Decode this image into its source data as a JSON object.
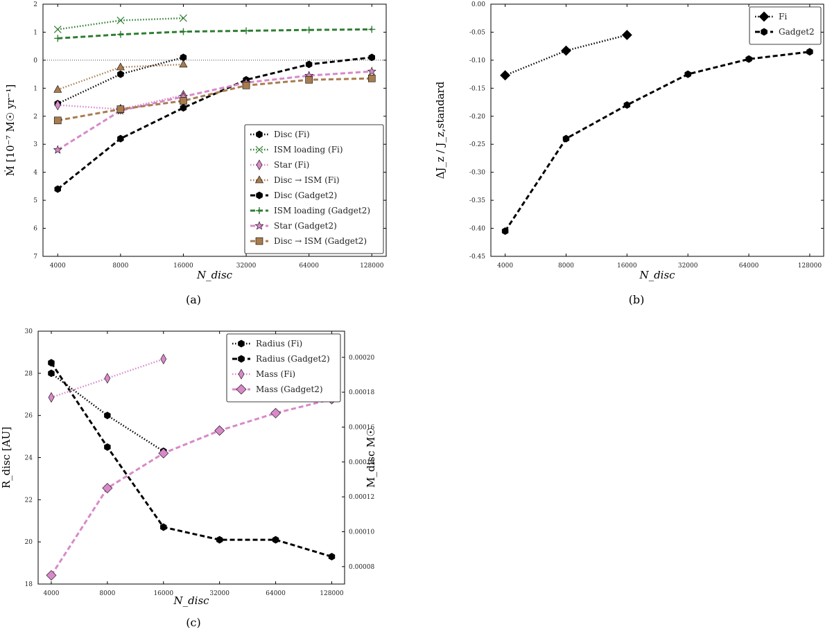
{
  "figure": {
    "panels": [
      "(a)",
      "(b)",
      "(c)"
    ]
  },
  "colors": {
    "black": "#000000",
    "green": "#2e7d32",
    "pink": "#d889c8",
    "brown": "#a87c4f"
  },
  "chart_data": [
    {
      "id": "a",
      "type": "line",
      "caption": "(a)",
      "xlabel": "N_disc",
      "ylabel": "Ṁ [10⁻⁷ M☉ yr⁻¹]",
      "x_scale": "log2",
      "xlim": [
        3400,
        150000
      ],
      "ylim": [
        -7,
        2
      ],
      "yticks": [
        2,
        1,
        0,
        -1,
        -2,
        -3,
        -4,
        -5,
        -6,
        -7
      ],
      "ytick_labels": [
        "2",
        "1",
        "0",
        "1",
        "2",
        "3",
        "4",
        "5",
        "6",
        "7"
      ],
      "xticks": [
        4000,
        8000,
        16000,
        32000,
        64000,
        128000
      ],
      "xtick_labels": [
        "4000",
        "8000",
        "16000",
        "32000",
        "64000",
        "128000"
      ],
      "hline": 0,
      "legend_position": "lower-right",
      "series": [
        {
          "name": "Disc (Fi)",
          "color": "#000000",
          "dash": "dot",
          "marker": "hexagon",
          "x": [
            4000,
            8000,
            16000
          ],
          "y": [
            -1.55,
            -0.5,
            0.1
          ]
        },
        {
          "name": "ISM loading (Fi)",
          "color": "#2e7d32",
          "dash": "dot",
          "marker": "x",
          "x": [
            4000,
            8000,
            16000
          ],
          "y": [
            1.1,
            1.42,
            1.5
          ]
        },
        {
          "name": "Star (Fi)",
          "color": "#d889c8",
          "dash": "dot",
          "marker": "thin-diamond",
          "x": [
            4000,
            8000,
            16000
          ],
          "y": [
            -1.6,
            -1.75,
            -1.25
          ]
        },
        {
          "name": "Disc → ISM (Fi)",
          "color": "#a87c4f",
          "dash": "dot",
          "marker": "triangle",
          "x": [
            4000,
            8000,
            16000
          ],
          "y": [
            -1.05,
            -0.25,
            -0.15
          ]
        },
        {
          "name": "Disc (Gadget2)",
          "color": "#000000",
          "dash": "dash",
          "marker": "hexagon",
          "x": [
            4000,
            8000,
            16000,
            32000,
            64000,
            128000
          ],
          "y": [
            -4.6,
            -2.8,
            -1.7,
            -0.7,
            -0.15,
            0.1
          ]
        },
        {
          "name": "ISM loading (Gadget2)",
          "color": "#2e7d32",
          "dash": "dash",
          "marker": "plus",
          "x": [
            4000,
            8000,
            16000,
            32000,
            64000,
            128000
          ],
          "y": [
            0.78,
            0.92,
            1.02,
            1.05,
            1.08,
            1.1
          ]
        },
        {
          "name": "Star (Gadget2)",
          "color": "#d889c8",
          "dash": "dash",
          "marker": "star",
          "x": [
            4000,
            8000,
            16000,
            32000,
            64000,
            128000
          ],
          "y": [
            -3.2,
            -1.8,
            -1.3,
            -0.8,
            -0.55,
            -0.4
          ]
        },
        {
          "name": "Disc → ISM (Gadget2)",
          "color": "#a87c4f",
          "dash": "dash",
          "marker": "square",
          "x": [
            4000,
            8000,
            16000,
            32000,
            64000,
            128000
          ],
          "y": [
            -2.15,
            -1.75,
            -1.45,
            -0.9,
            -0.7,
            -0.65
          ]
        }
      ]
    },
    {
      "id": "b",
      "type": "line",
      "caption": "(b)",
      "xlabel": "N_disc",
      "ylabel": "ΔJ_z / J_z,standard",
      "x_scale": "log2",
      "xlim": [
        3400,
        150000
      ],
      "ylim": [
        -0.45,
        0.0
      ],
      "yticks": [
        0.0,
        -0.05,
        -0.1,
        -0.15,
        -0.2,
        -0.25,
        -0.3,
        -0.35,
        -0.4,
        -0.45
      ],
      "ytick_labels": [
        "0.00",
        "-0.05",
        "-0.10",
        "-0.15",
        "-0.20",
        "-0.25",
        "-0.30",
        "-0.35",
        "-0.40",
        "-0.45"
      ],
      "xticks": [
        4000,
        8000,
        16000,
        32000,
        64000,
        128000
      ],
      "xtick_labels": [
        "4000",
        "8000",
        "16000",
        "32000",
        "64000",
        "128000"
      ],
      "legend_position": "top-right",
      "series": [
        {
          "name": "Fi",
          "color": "#000000",
          "dash": "dot",
          "marker": "diamond",
          "x": [
            4000,
            8000,
            16000
          ],
          "y": [
            -0.127,
            -0.083,
            -0.055
          ]
        },
        {
          "name": "Gadget2",
          "color": "#000000",
          "dash": "dash",
          "marker": "hexagon",
          "x": [
            4000,
            8000,
            16000,
            32000,
            64000,
            128000
          ],
          "y": [
            -0.405,
            -0.24,
            -0.18,
            -0.125,
            -0.098,
            -0.085
          ]
        }
      ]
    },
    {
      "id": "c",
      "type": "line",
      "caption": "(c)",
      "xlabel": "N_disc",
      "ylabel": "R_disc [AU]",
      "ylabel_right": "M_disc M☉",
      "x_scale": "log2",
      "xlim": [
        3400,
        150000
      ],
      "ylim": [
        18,
        30
      ],
      "ylim_right": [
        7e-05,
        0.000215
      ],
      "yticks": [
        18,
        20,
        22,
        24,
        26,
        28,
        30
      ],
      "ytick_labels": [
        "18",
        "20",
        "22",
        "24",
        "26",
        "28",
        "30"
      ],
      "yticks_right": [
        8e-05,
        0.0001,
        0.00012,
        0.00014,
        0.00016,
        0.00018,
        0.0002
      ],
      "ytick_labels_right": [
        "0.00008",
        "0.00010",
        "0.00012",
        "0.00014",
        "0.00016",
        "0.00018",
        "0.00020"
      ],
      "xticks": [
        4000,
        8000,
        16000,
        32000,
        64000,
        128000
      ],
      "xtick_labels": [
        "4000",
        "8000",
        "16000",
        "32000",
        "64000",
        "128000"
      ],
      "legend_position": "top-right",
      "series": [
        {
          "name": "Radius (Fi)",
          "axis": "left",
          "color": "#000000",
          "dash": "dot",
          "marker": "hexagon",
          "x": [
            4000,
            8000,
            16000
          ],
          "y": [
            28.0,
            26.0,
            24.3
          ]
        },
        {
          "name": "Radius (Gadget2)",
          "axis": "left",
          "color": "#000000",
          "dash": "dash",
          "marker": "hexagon",
          "x": [
            4000,
            8000,
            16000,
            32000,
            64000,
            128000
          ],
          "y": [
            28.5,
            24.5,
            20.7,
            20.1,
            20.1,
            19.3
          ]
        },
        {
          "name": "Mass (Fi)",
          "axis": "right",
          "color": "#d889c8",
          "dash": "dot",
          "marker": "thin-diamond",
          "x": [
            4000,
            8000,
            16000
          ],
          "y": [
            0.000177,
            0.000188,
            0.000199
          ]
        },
        {
          "name": "Mass (Gadget2)",
          "axis": "right",
          "color": "#d889c8",
          "dash": "dash",
          "marker": "diamond",
          "x": [
            4000,
            8000,
            16000,
            32000,
            64000,
            128000
          ],
          "y": [
            7.5e-05,
            0.000125,
            0.000145,
            0.000158,
            0.000168,
            0.000176
          ]
        }
      ]
    }
  ]
}
